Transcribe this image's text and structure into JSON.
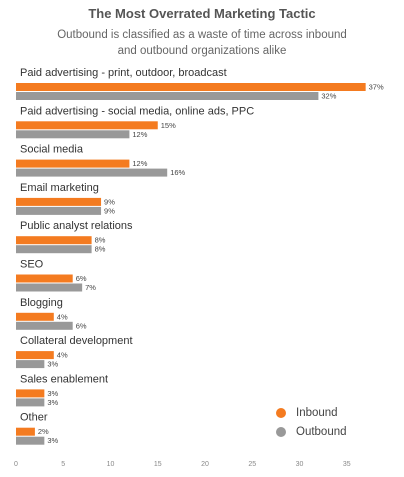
{
  "chart_data": {
    "type": "bar",
    "orientation": "horizontal",
    "title": "The Most Overrated Marketing Tactic",
    "subtitle_lines": [
      "Outbound is classified as a waste of time across inbound",
      "and outbound organizations alike"
    ],
    "categories": [
      "Paid advertising - print, outdoor, broadcast",
      "Paid advertising - social media, online ads, PPC",
      "Social media",
      "Email marketing",
      "Public analyst relations",
      "SEO",
      "Blogging",
      "Collateral development",
      "Sales enablement",
      "Other"
    ],
    "series": [
      {
        "name": "Inbound",
        "color": "#f47b20",
        "values": [
          37,
          15,
          12,
          9,
          8,
          6,
          4,
          4,
          3,
          2
        ]
      },
      {
        "name": "Outbound",
        "color": "#999999",
        "values": [
          32,
          12,
          16,
          9,
          8,
          7,
          6,
          3,
          3,
          3
        ]
      }
    ],
    "value_suffix": "%",
    "xlim": [
      0,
      37
    ],
    "x_ticks": [
      0,
      5,
      10,
      15,
      20,
      25,
      30,
      35
    ],
    "grid": false,
    "legend_position": "bottom-right"
  }
}
